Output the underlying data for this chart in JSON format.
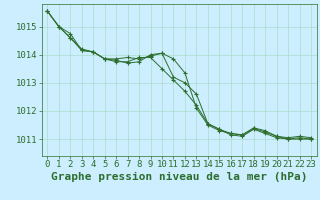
{
  "title": "Graphe pression niveau de la mer (hPa)",
  "background_color": "#cceeff",
  "plot_bg_color": "#cceeff",
  "grid_color": "#aaddcc",
  "line_color": "#2d6e2d",
  "x_ticks": [
    0,
    1,
    2,
    3,
    4,
    5,
    6,
    7,
    8,
    9,
    10,
    11,
    12,
    13,
    14,
    15,
    16,
    17,
    18,
    19,
    20,
    21,
    22,
    23
  ],
  "ylim": [
    1010.4,
    1015.8
  ],
  "yticks": [
    1011,
    1012,
    1013,
    1014,
    1015
  ],
  "series": [
    [
      1015.55,
      1015.0,
      1014.75,
      1014.15,
      1014.1,
      1013.85,
      1013.85,
      1013.9,
      1013.85,
      1013.95,
      1014.05,
      1013.85,
      1013.35,
      1012.1,
      1011.5,
      1011.3,
      1011.2,
      1011.15,
      1011.4,
      1011.3,
      1011.1,
      1011.05,
      1011.1,
      1011.05
    ],
    [
      1015.55,
      1015.0,
      1014.6,
      1014.2,
      1014.1,
      1013.85,
      1013.8,
      1013.7,
      1013.75,
      1014.0,
      1014.05,
      1013.2,
      1013.0,
      1012.6,
      1011.55,
      1011.35,
      1011.2,
      1011.15,
      1011.38,
      1011.25,
      1011.1,
      1011.0,
      1011.05,
      1011.0
    ],
    [
      1015.55,
      1015.0,
      1014.6,
      1014.15,
      1014.1,
      1013.85,
      1013.75,
      1013.75,
      1013.9,
      1013.9,
      1013.5,
      1013.1,
      1012.7,
      1012.2,
      1011.55,
      1011.35,
      1011.15,
      1011.1,
      1011.35,
      1011.2,
      1011.05,
      1011.0,
      1011.0,
      1011.0
    ]
  ],
  "title_fontsize": 8,
  "tick_fontsize": 6.5,
  "ylabel_fontsize": 6.5
}
